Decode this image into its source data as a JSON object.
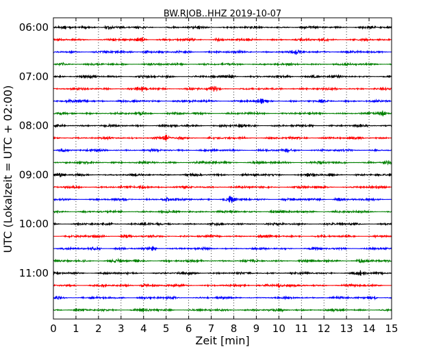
{
  "chart_data": {
    "type": "line",
    "title": "BW.RJOB..HHZ 2019-10-07",
    "xlabel": "Zeit  [min]",
    "ylabel": "UTC (Lokalzeit = UTC + 02:00)",
    "xlim": [
      0,
      15
    ],
    "x_ticks": [
      "0",
      "1",
      "2",
      "3",
      "4",
      "5",
      "6",
      "7",
      "8",
      "9",
      "10",
      "11",
      "12",
      "13",
      "14",
      "15"
    ],
    "y_tick_labels": [
      "06:00",
      "07:00",
      "08:00",
      "09:00",
      "10:00",
      "11:00"
    ],
    "trace_interval_min": 15,
    "trace_start": "06:00",
    "trace_end": "11:45",
    "trace_colors": [
      "#000000",
      "#ff0000",
      "#0000ff",
      "#008000"
    ],
    "grid": "vertical-dotted",
    "series": [
      {
        "start": "06:00",
        "color": "#000000",
        "events": [
          {
            "t": 2.4,
            "amp": 0.5
          }
        ]
      },
      {
        "start": "06:15",
        "color": "#ff0000",
        "events": [
          {
            "t": 3.9,
            "amp": 0.6
          },
          {
            "t": 7.3,
            "amp": 0.5
          },
          {
            "t": 12.0,
            "amp": 0.45
          }
        ]
      },
      {
        "start": "06:30",
        "color": "#0000ff",
        "events": [
          {
            "t": 4.1,
            "amp": 0.45
          },
          {
            "t": 10.8,
            "amp": 0.45
          }
        ]
      },
      {
        "start": "06:45",
        "color": "#008000",
        "events": [
          {
            "t": 0.4,
            "amp": 0.4
          }
        ]
      },
      {
        "start": "07:00",
        "color": "#000000",
        "events": [
          {
            "t": 7.9,
            "amp": 0.45
          },
          {
            "t": 11.6,
            "amp": 0.45
          }
        ]
      },
      {
        "start": "07:15",
        "color": "#ff0000",
        "events": [
          {
            "t": 4.0,
            "amp": 0.5
          },
          {
            "t": 7.1,
            "amp": 0.7
          }
        ]
      },
      {
        "start": "07:30",
        "color": "#0000ff",
        "events": [
          {
            "t": 1.3,
            "amp": 0.45
          },
          {
            "t": 9.2,
            "amp": 0.4
          }
        ]
      },
      {
        "start": "07:45",
        "color": "#008000",
        "events": [
          {
            "t": 3.9,
            "amp": 0.5
          },
          {
            "t": 14.6,
            "amp": 0.65
          }
        ]
      },
      {
        "start": "08:00",
        "color": "#000000",
        "events": [
          {
            "t": 8.3,
            "amp": 0.45
          }
        ]
      },
      {
        "start": "08:15",
        "color": "#ff0000",
        "events": [
          {
            "t": 5.0,
            "amp": 0.55
          },
          {
            "t": 5.6,
            "amp": 0.45
          }
        ]
      },
      {
        "start": "08:30",
        "color": "#0000ff",
        "events": [
          {
            "t": 0.4,
            "amp": 0.6
          },
          {
            "t": 10.4,
            "amp": 0.5
          }
        ]
      },
      {
        "start": "08:45",
        "color": "#008000",
        "events": [
          {
            "t": 11.8,
            "amp": 0.45
          },
          {
            "t": 14.8,
            "amp": 0.5
          }
        ]
      },
      {
        "start": "09:00",
        "color": "#000000",
        "events": [
          {
            "t": 0.3,
            "amp": 0.5
          },
          {
            "t": 11.4,
            "amp": 0.45
          }
        ]
      },
      {
        "start": "09:15",
        "color": "#ff0000",
        "events": [
          {
            "t": 4.0,
            "amp": 0.45
          }
        ]
      },
      {
        "start": "09:30",
        "color": "#0000ff",
        "events": [
          {
            "t": 5.0,
            "amp": 0.6
          },
          {
            "t": 7.8,
            "amp": 0.85
          },
          {
            "t": 12.6,
            "amp": 0.45
          }
        ]
      },
      {
        "start": "09:45",
        "color": "#008000",
        "events": [
          {
            "t": 9.7,
            "amp": 0.4
          }
        ]
      },
      {
        "start": "10:00",
        "color": "#000000",
        "events": [
          {
            "t": 4.1,
            "amp": 0.5
          }
        ]
      },
      {
        "start": "10:15",
        "color": "#ff0000",
        "events": [
          {
            "t": 3.2,
            "amp": 0.45
          }
        ]
      },
      {
        "start": "10:30",
        "color": "#0000ff",
        "events": [
          {
            "t": 1.9,
            "amp": 0.55
          },
          {
            "t": 4.4,
            "amp": 0.45
          }
        ]
      },
      {
        "start": "10:45",
        "color": "#008000",
        "events": [
          {
            "t": 2.8,
            "amp": 0.45
          },
          {
            "t": 13.6,
            "amp": 0.45
          }
        ]
      },
      {
        "start": "11:00",
        "color": "#000000",
        "events": [
          {
            "t": 13.6,
            "amp": 0.65
          }
        ]
      },
      {
        "start": "11:15",
        "color": "#ff0000",
        "events": [
          {
            "t": 4.0,
            "amp": 0.5
          },
          {
            "t": 9.5,
            "amp": 0.55
          },
          {
            "t": 10.0,
            "amp": 0.5
          }
        ]
      },
      {
        "start": "11:30",
        "color": "#0000ff",
        "events": [
          {
            "t": 0.2,
            "amp": 0.45
          },
          {
            "t": 14.2,
            "amp": 0.4
          }
        ]
      },
      {
        "start": "11:45",
        "color": "#008000",
        "events": [
          {
            "t": 4.1,
            "amp": 0.4
          }
        ]
      }
    ]
  }
}
